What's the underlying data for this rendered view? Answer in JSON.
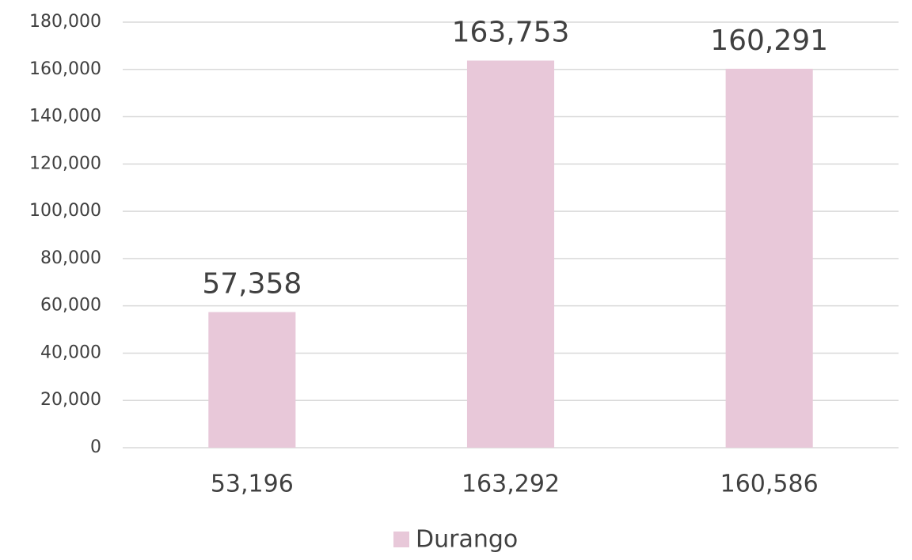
{
  "chart_data": {
    "type": "bar",
    "categories": [
      "53,196",
      "163,292",
      "160,586"
    ],
    "series": [
      {
        "name": "Durango",
        "color": "#e8c8d9",
        "values": [
          57358,
          163753,
          160291
        ],
        "value_labels": [
          "57,358",
          "163,753",
          "160,291"
        ]
      }
    ],
    "ylim": [
      0,
      180000
    ],
    "yticks": [
      0,
      {
        "value": 20000,
        "label": "20,000"
      },
      {
        "value": 40000,
        "label": "40,000"
      },
      {
        "value": 60000,
        "label": "60,000"
      },
      {
        "value": 80000,
        "label": "80,000"
      },
      {
        "value": 100000,
        "label": "100,000"
      },
      {
        "value": 120000,
        "label": "120,000"
      },
      {
        "value": 140000,
        "label": "140,000"
      },
      {
        "value": 160000,
        "label": "160,000"
      },
      {
        "value": 180000,
        "label": "180,000"
      }
    ],
    "grid": true,
    "legend": "bottom"
  }
}
